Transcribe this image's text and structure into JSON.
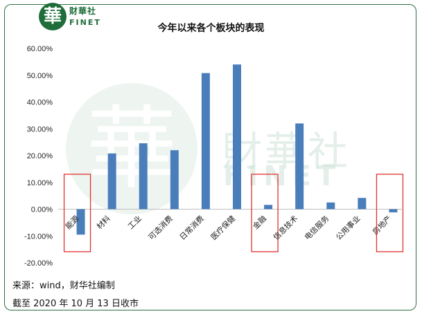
{
  "logo": {
    "mark": "華",
    "cn": "财華社",
    "en": "FINET"
  },
  "watermark": {
    "mark": "華",
    "cn": "財華社",
    "en": "FINET"
  },
  "colors": {
    "bar": "#4a7ebb",
    "highlight_box": "#e03030",
    "frame": "#2f6f3e"
  },
  "source": {
    "line1": "来源：wind，财华社编制",
    "line2": "截至 2020 年 10 月 13 日收市"
  },
  "chart_data": {
    "type": "bar",
    "title": "今年以来各个板块的表现",
    "categories": [
      "能源",
      "材料",
      "工业",
      "可选消费",
      "日常消费",
      "医疗保健",
      "金融",
      "信息技术",
      "电信服务",
      "公用事业",
      "房地产"
    ],
    "values": [
      -9.5,
      20.8,
      24.6,
      22.0,
      50.8,
      54.0,
      1.6,
      32.0,
      2.5,
      4.2,
      -1.2
    ],
    "yticks": [
      "60.00%",
      "50.00%",
      "40.00%",
      "30.00%",
      "20.00%",
      "10.00%",
      "0.00%",
      "-10.00%",
      "-20.00%"
    ],
    "ylim": [
      -20,
      60
    ],
    "highlighted": [
      "能源",
      "金融",
      "房地产"
    ],
    "grid": false,
    "legend": "none"
  }
}
